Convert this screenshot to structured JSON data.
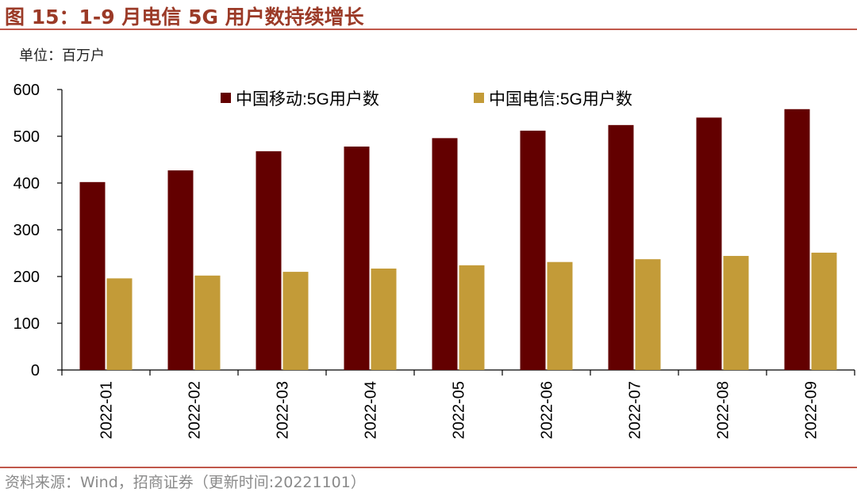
{
  "header": {
    "title": "图 15：1-9 月电信 5G 用户数持续增长",
    "unit_label": "单位：百万户"
  },
  "footer": {
    "source": "资料来源：Wind，招商证券（更新时间:20221101）"
  },
  "colors": {
    "series_1": "#630000",
    "series_2": "#c39b38",
    "accent": "#c0574a",
    "title": "#9b3a27"
  },
  "chart_data": {
    "type": "bar",
    "title": "1-9 月电信 5G 用户数持续增长",
    "xlabel": "",
    "ylabel": "百万户",
    "ylim": [
      0,
      600
    ],
    "yticks": [
      0,
      100,
      200,
      300,
      400,
      500,
      600
    ],
    "grid": false,
    "legend": "top",
    "categories": [
      "2022-01",
      "2022-02",
      "2022-03",
      "2022-04",
      "2022-05",
      "2022-06",
      "2022-07",
      "2022-08",
      "2022-09"
    ],
    "series": [
      {
        "name": "中国移动:5G用户数",
        "values": [
          402,
          427,
          468,
          478,
          496,
          512,
          524,
          540,
          558
        ]
      },
      {
        "name": "中国电信:5G用户数",
        "values": [
          196,
          202,
          210,
          217,
          224,
          231,
          237,
          244,
          251
        ]
      }
    ]
  }
}
